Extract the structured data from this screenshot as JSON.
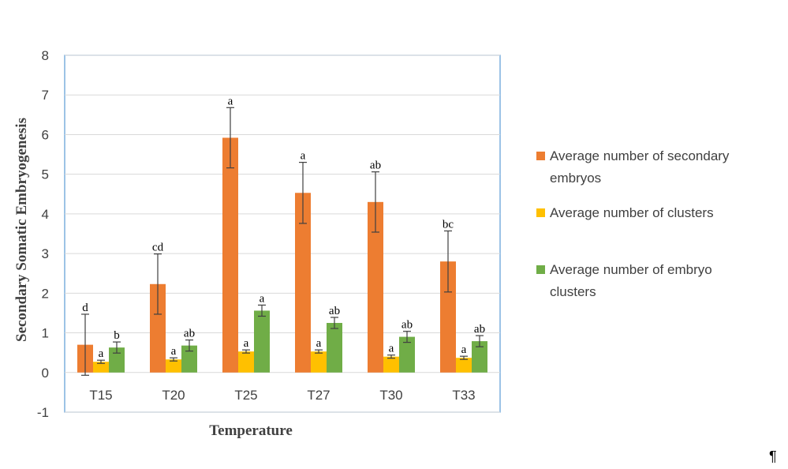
{
  "chart_data": {
    "type": "bar",
    "title": "",
    "xlabel": "Temperature",
    "ylabel": "Secondary Somatic Embryogenesis",
    "ylim": [
      -1,
      8
    ],
    "yticks": [
      -1,
      0,
      1,
      2,
      3,
      4,
      5,
      6,
      7,
      8
    ],
    "grid": true,
    "legend_position": "right",
    "categories": [
      "T15",
      "T20",
      "T25",
      "T27",
      "T30",
      "T33"
    ],
    "series": [
      {
        "name": "Average number of secondary embryos",
        "color": "#ED7D31",
        "values": [
          0.7,
          2.23,
          5.92,
          4.53,
          4.3,
          2.8
        ],
        "errors": [
          0.77,
          0.76,
          0.76,
          0.77,
          0.76,
          0.77
        ],
        "significance": [
          "d",
          "cd",
          "a",
          "a",
          "ab",
          "bc"
        ]
      },
      {
        "name": "Average number of clusters",
        "color": "#FFC000",
        "values": [
          0.27,
          0.33,
          0.53,
          0.53,
          0.4,
          0.37
        ],
        "errors": [
          0.04,
          0.04,
          0.04,
          0.04,
          0.04,
          0.04
        ],
        "significance": [
          "a",
          "a",
          "a",
          "a",
          "a",
          "a"
        ]
      },
      {
        "name": "Average number of embryo clusters",
        "color": "#70AD47",
        "values": [
          0.63,
          0.68,
          1.56,
          1.25,
          0.9,
          0.79
        ],
        "errors": [
          0.14,
          0.14,
          0.14,
          0.14,
          0.14,
          0.14
        ],
        "significance": [
          "b",
          "ab",
          "a",
          "ab",
          "ab",
          "ab"
        ]
      }
    ],
    "legend_lines": [
      [
        "Average number of secondary",
        "embryos"
      ],
      [
        "Average number of clusters"
      ],
      [
        "Average number of embryo",
        "clusters"
      ]
    ]
  },
  "trailing_mark": "¶"
}
